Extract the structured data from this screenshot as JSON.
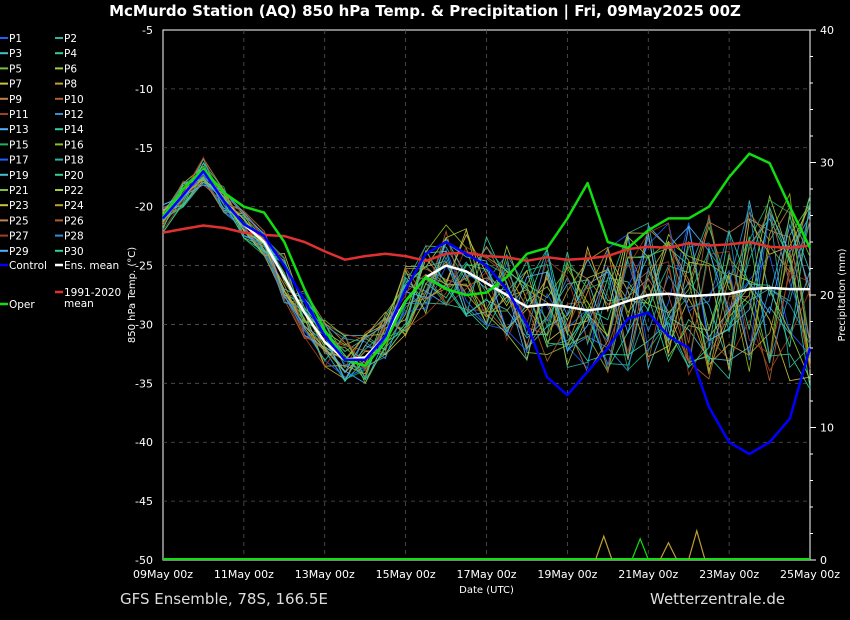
{
  "title": "McMurdo Station  (AQ)  850 hPa Temp. & Precipitation | Fri, 09May2025 00Z",
  "footer_left": "GFS Ensemble, 78S, 166.5E",
  "footer_right": "Wetterzentrale.de",
  "colors": {
    "control": "#0000ff",
    "ens_mean": "#ffffff",
    "clim_mean": "#e03030",
    "oper": "#11dd11",
    "members": [
      "#1f5fff",
      "#2bb5a0",
      "#47c0d0",
      "#38d090",
      "#7ac040",
      "#a0d040",
      "#d0c040",
      "#c0a030",
      "#c08050",
      "#b06030",
      "#a04020",
      "#3090d0",
      "#50b0ff",
      "#30d0a0",
      "#20b060",
      "#90c020"
    ]
  },
  "chart_data": {
    "type": "line",
    "xlabel": "Date (UTC)",
    "ylabel_left": "850 hPa Temp. (°C)",
    "ylabel_right": "Precipitation (mm)",
    "ylim_left": [
      -50,
      -5
    ],
    "ylim_right": [
      0,
      40
    ],
    "xlim_days": [
      0,
      16
    ],
    "yticks_left": [
      "-5",
      "-10",
      "-15",
      "-20",
      "-25",
      "-30",
      "-35",
      "-40",
      "-45",
      "-50"
    ],
    "yticks_right": [
      "40",
      "30",
      "20",
      "10",
      "0"
    ],
    "xticks": [
      "09May 00z",
      "11May 00z",
      "13May 00z",
      "15May 00z",
      "17May 00z",
      "19May 00z",
      "21May 00z",
      "23May 00z",
      "25May 00z"
    ],
    "grid": true,
    "legend": {
      "members": [
        [
          "P1",
          "P2"
        ],
        [
          "P3",
          "P4"
        ],
        [
          "P5",
          "P6"
        ],
        [
          "P7",
          "P8"
        ],
        [
          "P9",
          "P10"
        ],
        [
          "P11",
          "P12"
        ],
        [
          "P13",
          "P14"
        ],
        [
          "P15",
          "P16"
        ],
        [
          "P17",
          "P18"
        ],
        [
          "P19",
          "P20"
        ],
        [
          "P21",
          "P22"
        ],
        [
          "P23",
          "P24"
        ],
        [
          "P25",
          "P26"
        ],
        [
          "P27",
          "P28"
        ],
        [
          "P29",
          "P30"
        ]
      ],
      "control": "Control",
      "ens_mean": "Ens. mean",
      "clim_1": "1991-2020",
      "clim_2": "mean",
      "oper": "Oper"
    },
    "series": {
      "control": {
        "x": [
          0,
          0.5,
          1,
          1.5,
          2,
          2.5,
          3,
          3.5,
          4,
          4.5,
          5,
          5.5,
          6,
          6.5,
          7,
          7.5,
          8,
          8.5,
          9,
          9.5,
          10,
          10.5,
          11,
          11.5,
          12,
          12.5,
          13,
          13.5,
          14,
          14.5,
          15,
          15.5,
          16
        ],
        "y": [
          -21,
          -19,
          -17,
          -19.5,
          -21.5,
          -22.5,
          -25,
          -28,
          -31,
          -33,
          -33,
          -31,
          -27,
          -24,
          -23,
          -24,
          -25,
          -27,
          -30,
          -34.5,
          -36,
          -34,
          -32,
          -29.5,
          -29,
          -31,
          -32,
          -37,
          -40,
          -41,
          -40,
          -38,
          -32
        ]
      },
      "ens_mean": {
        "x": [
          0,
          0.5,
          1,
          1.5,
          2,
          2.5,
          3,
          3.5,
          4,
          4.5,
          5,
          5.5,
          6,
          6.5,
          7,
          7.5,
          8,
          8.5,
          9,
          9.5,
          10,
          10.5,
          11,
          11.5,
          12,
          12.5,
          13,
          13.5,
          14,
          14.5,
          15,
          15.5,
          16
        ],
        "y": [
          -21,
          -19,
          -17,
          -19.5,
          -21.5,
          -23,
          -26,
          -29,
          -31.5,
          -33,
          -32.8,
          -31,
          -28,
          -26,
          -25,
          -25.5,
          -26.5,
          -27.5,
          -28.5,
          -28.3,
          -28.5,
          -28.8,
          -28.6,
          -28,
          -27.5,
          -27.4,
          -27.6,
          -27.5,
          -27.4,
          -27,
          -26.9,
          -27,
          -27
        ]
      },
      "clim_mean": {
        "x": [
          0,
          0.5,
          1,
          1.5,
          2,
          2.5,
          3,
          3.5,
          4,
          4.5,
          5,
          5.5,
          6,
          6.5,
          7,
          7.5,
          8,
          8.5,
          9,
          9.5,
          10,
          10.5,
          11,
          11.5,
          12,
          12.5,
          13,
          13.5,
          14,
          14.5,
          15,
          15.5,
          16
        ],
        "y": [
          -22.2,
          -21.9,
          -21.6,
          -21.8,
          -22.2,
          -22.4,
          -22.5,
          -23,
          -23.8,
          -24.5,
          -24.2,
          -24,
          -24.2,
          -24.6,
          -24,
          -23.9,
          -24.2,
          -24.3,
          -24.6,
          -24.3,
          -24.5,
          -24.4,
          -24.2,
          -23.6,
          -23.4,
          -23.5,
          -23.1,
          -23.3,
          -23.2,
          -23,
          -23.4,
          -23.5,
          -23.3
        ]
      },
      "oper": {
        "x": [
          0,
          0.5,
          1,
          1.5,
          2,
          2.5,
          3,
          3.5,
          4,
          4.5,
          5,
          5.5,
          6,
          6.5,
          7,
          7.5,
          8,
          8.5,
          9,
          9.5,
          10,
          10.5,
          11,
          11.5,
          12,
          12.5,
          13,
          13.5,
          14,
          14.5,
          15,
          15.5,
          16
        ],
        "y": [
          -20.8,
          -18.5,
          -16.8,
          -18.8,
          -20,
          -20.5,
          -23,
          -27,
          -30.5,
          -33,
          -33.5,
          -31.5,
          -28,
          -26,
          -27,
          -27.5,
          -27.3,
          -26,
          -24,
          -23.5,
          -21,
          -18,
          -23,
          -23.5,
          -22,
          -21,
          -21,
          -20,
          -17.5,
          -15.5,
          -16.3,
          -20,
          -23.5
        ]
      }
    },
    "precip_peaks": [
      {
        "day": 11.8,
        "mm": 1.6,
        "series": "oper"
      },
      {
        "day": 13.2,
        "mm": 2.2,
        "series": "member"
      },
      {
        "day": 10.9,
        "mm": 1.8,
        "series": "member"
      },
      {
        "day": 12.5,
        "mm": 1.3,
        "series": "member"
      }
    ]
  }
}
